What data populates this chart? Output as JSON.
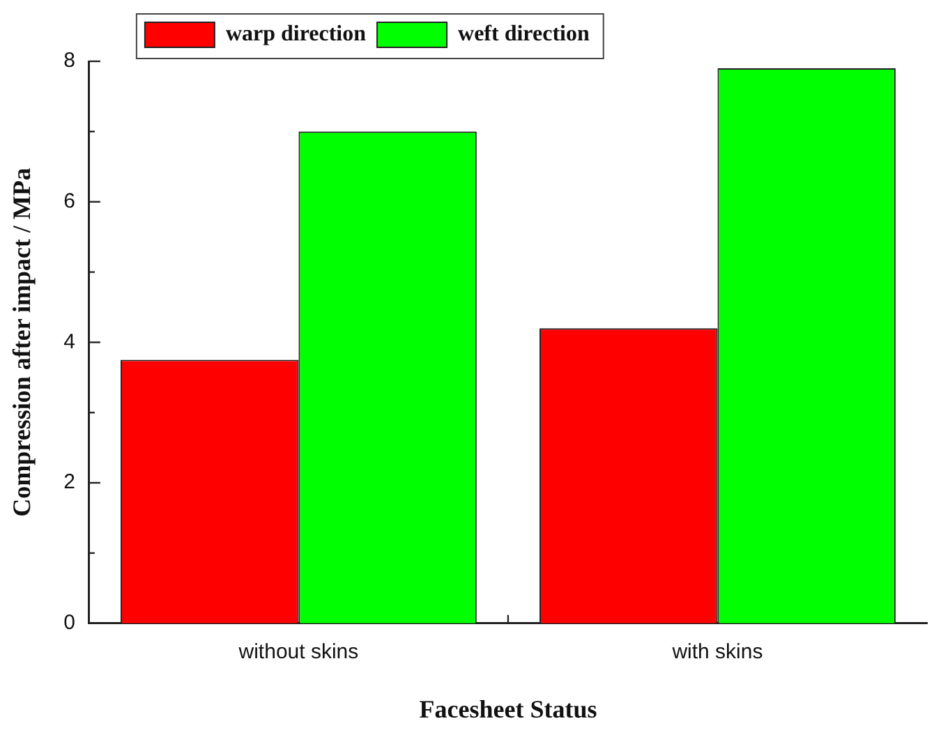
{
  "chart_data": {
    "type": "bar",
    "xlabel": "Facesheet Status",
    "ylabel": "Compression after impact / MPa",
    "categories": [
      "without skins",
      "with skins"
    ],
    "series": [
      {
        "name": "warp direction",
        "color": "#ff0000",
        "values": [
          3.75,
          4.2
        ]
      },
      {
        "name": "weft direction",
        "color": "#00ff00",
        "values": [
          7.0,
          7.9
        ]
      }
    ],
    "ylim": [
      0,
      8
    ],
    "yticks": [
      0,
      {
        "value": 1,
        "label": null
      },
      2,
      {
        "value": 3,
        "label": null
      },
      4,
      {
        "value": 5,
        "label": null
      },
      6,
      {
        "value": 7,
        "label": null
      },
      8
    ],
    "grid": false,
    "legend": "top left"
  }
}
